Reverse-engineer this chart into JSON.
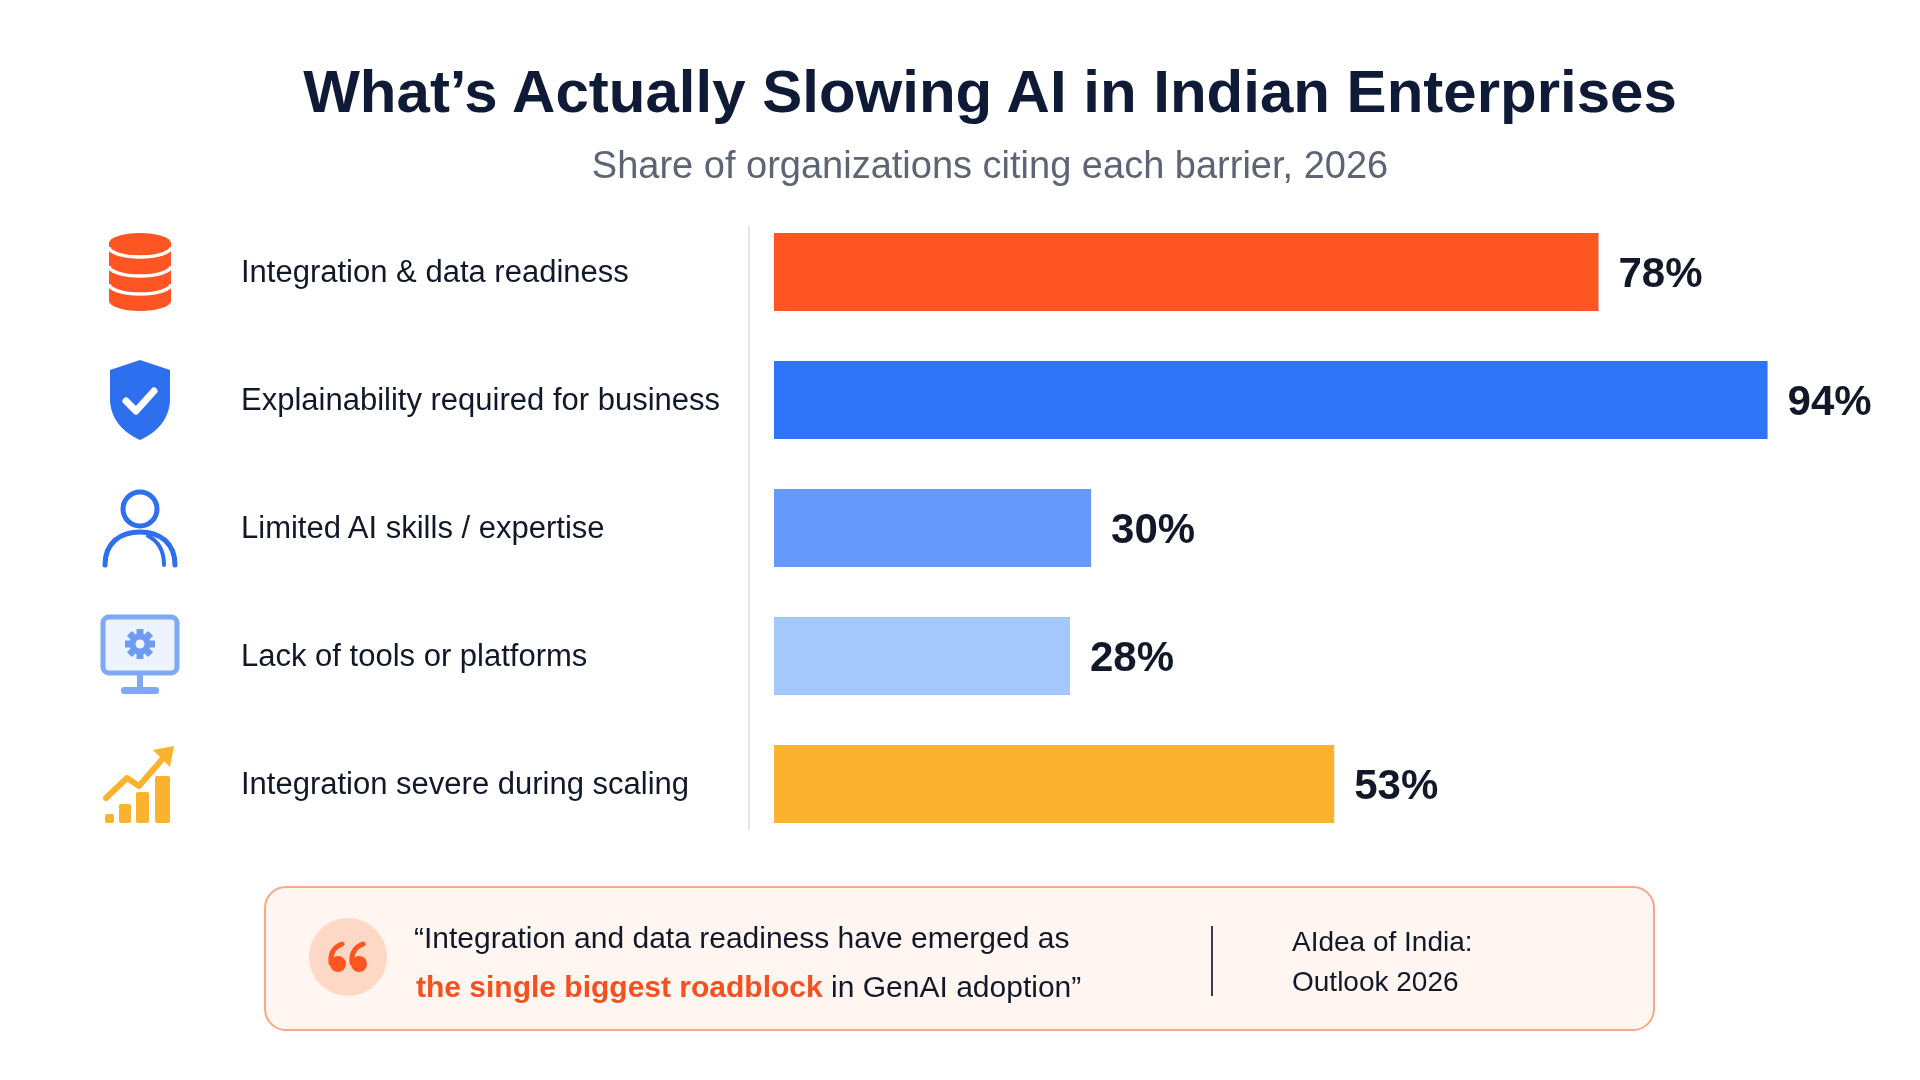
{
  "chart_data": {
    "type": "bar",
    "orientation": "horizontal",
    "title": "What’s Actually Slowing AI in Indian Enterprises",
    "subtitle": "Share of organizations citing each barrier, 2026",
    "categories": [
      "Integration & data readiness",
      "Explainability required for business",
      "Limited AI skills / expertise",
      "Lack of tools or platforms",
      "Integration severe during scaling"
    ],
    "values": [
      78,
      94,
      30,
      28,
      53
    ],
    "colors": [
      "#ff5522",
      "#2e75fa",
      "#6699fa",
      "#a5c8fc",
      "#fbb22e"
    ],
    "value_labels": [
      "78%",
      "94%",
      "30%",
      "28%",
      "53%"
    ],
    "annotations": [
      "“Integration and data readiness have emerged as",
      "the single biggest roadblock",
      "in GenAI adoption”",
      "AIdea of India: Outlook 2026"
    ],
    "grid": false,
    "legend": false,
    "tick_labels": "y"
  }
}
